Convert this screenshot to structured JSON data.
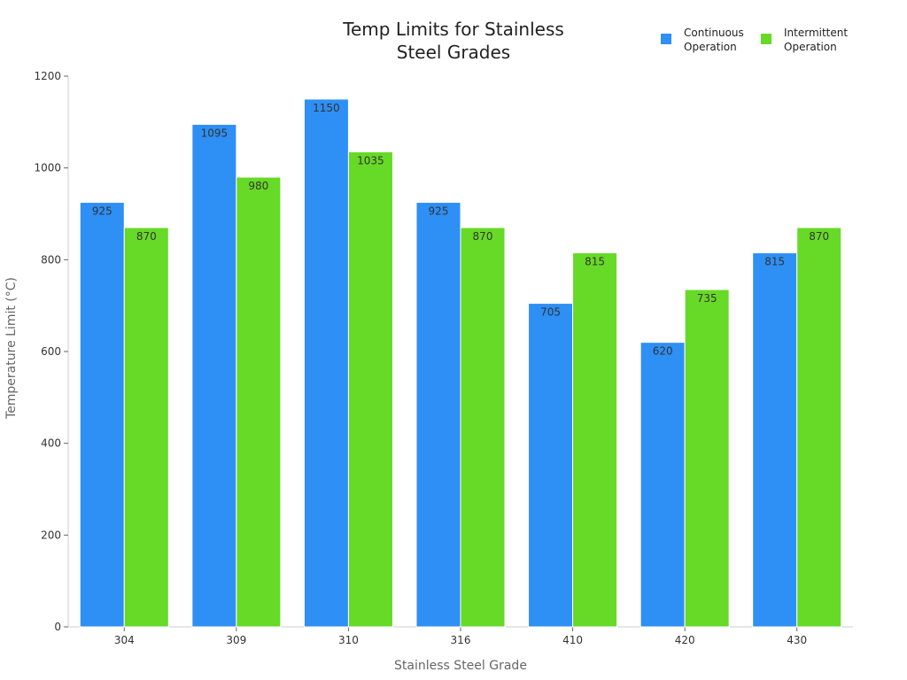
{
  "chart_data": {
    "type": "bar",
    "title_lines": [
      "Temp Limits for Stainless",
      "Steel Grades"
    ],
    "xlabel": "Stainless Steel Grade",
    "ylabel": "Temperature Limit (°C)",
    "categories": [
      "304",
      "309",
      "310",
      "316",
      "410",
      "420",
      "430"
    ],
    "series": [
      {
        "name_lines": [
          "Continuous",
          "Operation"
        ],
        "color": "#2e8ff5",
        "values": [
          925,
          1095,
          1150,
          925,
          705,
          620,
          815
        ]
      },
      {
        "name_lines": [
          "Intermittent",
          "Operation"
        ],
        "color": "#66da26",
        "values": [
          870,
          980,
          1035,
          870,
          815,
          735,
          870
        ]
      }
    ],
    "ylim": [
      0,
      1200
    ],
    "yticks": [
      0,
      200,
      400,
      600,
      800,
      1000,
      1200
    ],
    "legend_position": "top-right",
    "grid": false,
    "data_labels": true
  }
}
